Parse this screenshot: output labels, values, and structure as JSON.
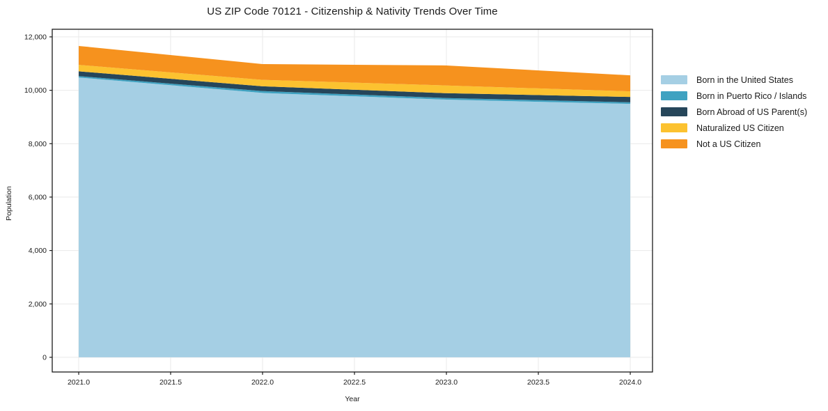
{
  "chart_data": {
    "type": "area",
    "stacked": true,
    "title": "US ZIP Code 70121 - Citizenship & Nativity Trends Over Time",
    "xlabel": "Year",
    "ylabel": "Population",
    "x": [
      2021,
      2022,
      2023,
      2024
    ],
    "series": [
      {
        "name": "Born in the United States",
        "color": "#a5cfe4",
        "values": [
          10480,
          9900,
          9650,
          9490
        ]
      },
      {
        "name": "Born in Puerto Rico / Islands",
        "color": "#3fa2c1",
        "values": [
          50,
          70,
          60,
          60
        ]
      },
      {
        "name": "Born Abroad of US Parent(s)",
        "color": "#26465a",
        "values": [
          180,
          180,
          180,
          200
        ]
      },
      {
        "name": "Naturalized US Citizen",
        "color": "#fcc230",
        "values": [
          240,
          240,
          290,
          210
        ]
      },
      {
        "name": "Not a US Citizen",
        "color": "#f6921e",
        "values": [
          710,
          590,
          750,
          600
        ]
      }
    ],
    "totals": [
      11660,
      10980,
      10930,
      10560
    ],
    "x_ticks": {
      "values": [
        2021.0,
        2021.5,
        2022.0,
        2022.5,
        2023.0,
        2023.5,
        2024.0
      ],
      "labels": [
        "2021.0",
        "2021.5",
        "2022.0",
        "2022.5",
        "2023.0",
        "2023.5",
        "2024.0"
      ]
    },
    "y_ticks": {
      "values": [
        0,
        2000,
        4000,
        6000,
        8000,
        10000,
        12000
      ],
      "labels": [
        "0",
        "2,000",
        "4,000",
        "6,000",
        "8,000",
        "10,000",
        "12,000"
      ]
    },
    "xlim": [
      2020.856,
      2024.121
    ],
    "ylim": [
      -550,
      12285
    ],
    "grid": true,
    "grid_color": "#e9e9e9",
    "axis_color": "#1a1a1a",
    "background": "#ffffff",
    "legend_position": "right-outside"
  }
}
